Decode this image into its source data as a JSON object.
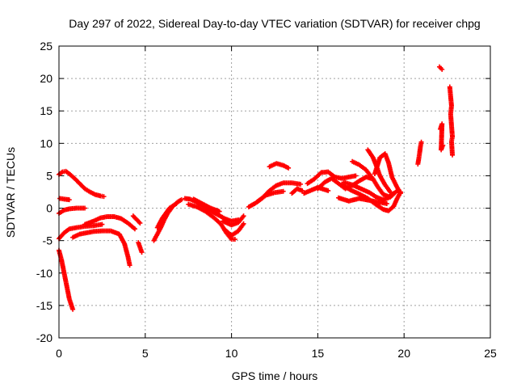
{
  "chart_data": {
    "type": "scatter",
    "title": "Day 297 of 2022, Sidereal Day-to-day VTEC variation (SDTVAR) for receiver chpg",
    "xlabel": "GPS time / hours",
    "ylabel": "SDTVAR / TECUs",
    "xlim": [
      0,
      25
    ],
    "ylim": [
      -20,
      25
    ],
    "xticks": [
      0,
      5,
      10,
      15,
      20,
      25
    ],
    "yticks": [
      -20,
      -15,
      -10,
      -5,
      0,
      5,
      10,
      15,
      20,
      25
    ],
    "grid": true,
    "marker": "plus",
    "color": "#ff0000",
    "series": [
      {
        "name": "arc-a1",
        "points": [
          [
            0.0,
            5.2
          ],
          [
            0.2,
            5.6
          ],
          [
            0.4,
            5.7
          ],
          [
            0.6,
            5.3
          ],
          [
            0.9,
            4.6
          ],
          [
            1.2,
            3.8
          ],
          [
            1.5,
            3.0
          ],
          [
            1.8,
            2.5
          ],
          [
            2.1,
            2.1
          ],
          [
            2.4,
            1.9
          ],
          [
            2.6,
            1.8
          ]
        ]
      },
      {
        "name": "arc-a2",
        "points": [
          [
            0.05,
            1.5
          ],
          [
            0.3,
            1.4
          ],
          [
            0.6,
            1.3
          ]
        ]
      },
      {
        "name": "arc-a3",
        "points": [
          [
            0.0,
            -0.8
          ],
          [
            0.3,
            -0.3
          ],
          [
            0.6,
            -0.1
          ],
          [
            1.0,
            0.0
          ],
          [
            1.5,
            0.0
          ]
        ]
      },
      {
        "name": "arc-a4",
        "points": [
          [
            0.0,
            -4.7
          ],
          [
            0.3,
            -3.8
          ],
          [
            0.6,
            -3.2
          ],
          [
            1.0,
            -3.0
          ],
          [
            1.5,
            -2.8
          ],
          [
            2.0,
            -2.7
          ],
          [
            2.5,
            -2.5
          ]
        ]
      },
      {
        "name": "arc-a5",
        "points": [
          [
            0.0,
            -6.5
          ],
          [
            0.15,
            -8.0
          ],
          [
            0.3,
            -10.0
          ],
          [
            0.45,
            -12.0
          ],
          [
            0.6,
            -14.0
          ],
          [
            0.8,
            -15.6
          ]
        ]
      },
      {
        "name": "arc-b1",
        "points": [
          [
            0.8,
            -4.5
          ],
          [
            1.2,
            -4.0
          ],
          [
            1.6,
            -3.8
          ],
          [
            2.0,
            -3.6
          ],
          [
            2.5,
            -3.5
          ],
          [
            3.0,
            -3.5
          ],
          [
            3.5,
            -4.0
          ],
          [
            3.8,
            -5.5
          ],
          [
            4.0,
            -7.5
          ],
          [
            4.1,
            -8.8
          ]
        ]
      },
      {
        "name": "arc-b2",
        "points": [
          [
            1.5,
            -2.5
          ],
          [
            2.0,
            -2.0
          ],
          [
            2.4,
            -1.5
          ],
          [
            2.8,
            -1.3
          ],
          [
            3.2,
            -1.3
          ],
          [
            3.6,
            -1.6
          ],
          [
            4.0,
            -2.3
          ],
          [
            4.4,
            -3.2
          ]
        ]
      },
      {
        "name": "arc-b3",
        "points": [
          [
            4.3,
            -1.2
          ],
          [
            4.7,
            -2.3
          ]
        ]
      },
      {
        "name": "arc-b4",
        "points": [
          [
            4.6,
            -5.3
          ],
          [
            4.8,
            -6.8
          ]
        ]
      },
      {
        "name": "arc-c1",
        "points": [
          [
            5.5,
            -5.0
          ],
          [
            5.7,
            -4.0
          ],
          [
            5.9,
            -3.0
          ],
          [
            6.1,
            -1.8
          ],
          [
            6.3,
            -0.8
          ],
          [
            6.6,
            0.3
          ],
          [
            6.9,
            1.0
          ],
          [
            7.1,
            1.3
          ]
        ]
      },
      {
        "name": "arc-c2",
        "points": [
          [
            5.7,
            -3.0
          ],
          [
            6.0,
            -1.5
          ],
          [
            6.4,
            0.0
          ],
          [
            6.8,
            0.7
          ]
        ]
      },
      {
        "name": "arc-d1",
        "points": [
          [
            7.3,
            1.5
          ],
          [
            7.6,
            1.4
          ],
          [
            8.0,
            0.9
          ],
          [
            8.4,
            0.3
          ],
          [
            8.8,
            -0.4
          ],
          [
            9.2,
            -1.0
          ],
          [
            9.6,
            -1.6
          ],
          [
            10.0,
            -2.0
          ],
          [
            10.4,
            -1.8
          ]
        ]
      },
      {
        "name": "arc-d2",
        "points": [
          [
            7.5,
            0.6
          ],
          [
            8.0,
            0.2
          ],
          [
            8.5,
            -0.5
          ],
          [
            9.0,
            -1.5
          ],
          [
            9.4,
            -2.5
          ],
          [
            9.7,
            -3.8
          ],
          [
            10.0,
            -4.8
          ],
          [
            10.2,
            -4.8
          ]
        ]
      },
      {
        "name": "arc-d3",
        "points": [
          [
            7.8,
            1.4
          ],
          [
            8.3,
            0.7
          ],
          [
            8.8,
            0.0
          ],
          [
            9.3,
            -0.5
          ]
        ]
      },
      {
        "name": "arc-d4",
        "points": [
          [
            9.5,
            -2.0
          ],
          [
            10.0,
            -2.6
          ],
          [
            10.4,
            -2.2
          ],
          [
            10.7,
            -1.2
          ]
        ]
      },
      {
        "name": "arc-d5",
        "points": [
          [
            9.6,
            -3.3
          ],
          [
            10.0,
            -4.2
          ],
          [
            10.4,
            -3.5
          ],
          [
            10.7,
            -2.4
          ]
        ]
      },
      {
        "name": "arc-e1",
        "points": [
          [
            11.0,
            0.2
          ],
          [
            11.4,
            0.8
          ],
          [
            11.8,
            1.6
          ],
          [
            12.2,
            2.7
          ],
          [
            12.6,
            3.5
          ],
          [
            13.0,
            3.9
          ],
          [
            13.5,
            3.9
          ],
          [
            14.0,
            3.7
          ]
        ]
      },
      {
        "name": "arc-e2",
        "points": [
          [
            11.5,
            1.0
          ],
          [
            12.0,
            2.0
          ],
          [
            12.5,
            2.4
          ],
          [
            13.0,
            2.6
          ]
        ]
      },
      {
        "name": "arc-e3",
        "points": [
          [
            12.2,
            6.4
          ],
          [
            12.6,
            6.9
          ],
          [
            13.0,
            6.6
          ],
          [
            13.3,
            6.2
          ]
        ]
      },
      {
        "name": "arc-e4",
        "points": [
          [
            13.5,
            2.3
          ],
          [
            13.8,
            3.0
          ],
          [
            14.1,
            2.7
          ]
        ]
      },
      {
        "name": "arc-f1",
        "points": [
          [
            14.4,
            3.8
          ],
          [
            14.8,
            4.5
          ],
          [
            15.2,
            5.5
          ],
          [
            15.6,
            5.6
          ],
          [
            16.0,
            4.8
          ],
          [
            16.4,
            4.6
          ],
          [
            16.8,
            4.8
          ],
          [
            17.2,
            5.0
          ]
        ]
      },
      {
        "name": "arc-f2",
        "points": [
          [
            15.0,
            3.0
          ],
          [
            15.4,
            4.0
          ],
          [
            15.8,
            4.6
          ],
          [
            16.2,
            3.8
          ],
          [
            16.6,
            3.0
          ],
          [
            17.0,
            3.5
          ],
          [
            17.4,
            4.2
          ],
          [
            17.8,
            4.8
          ],
          [
            18.2,
            4.5
          ]
        ]
      },
      {
        "name": "arc-f3",
        "points": [
          [
            14.2,
            2.3
          ],
          [
            15.0,
            3.2
          ],
          [
            15.6,
            2.7
          ]
        ]
      },
      {
        "name": "arc-g1",
        "points": [
          [
            16.4,
            3.6
          ],
          [
            16.9,
            2.8
          ],
          [
            17.4,
            2.2
          ],
          [
            17.9,
            1.5
          ],
          [
            18.4,
            0.5
          ],
          [
            18.8,
            -0.2
          ],
          [
            19.1,
            -0.4
          ],
          [
            19.4,
            0.3
          ],
          [
            19.6,
            1.5
          ],
          [
            19.8,
            2.5
          ]
        ]
      },
      {
        "name": "arc-g2",
        "points": [
          [
            17.0,
            7.2
          ],
          [
            17.4,
            6.7
          ],
          [
            17.8,
            5.9
          ],
          [
            18.2,
            4.5
          ],
          [
            18.5,
            3.2
          ],
          [
            18.8,
            2.1
          ],
          [
            19.1,
            1.8
          ],
          [
            19.4,
            2.3
          ]
        ]
      },
      {
        "name": "arc-g3",
        "points": [
          [
            17.9,
            9.0
          ],
          [
            18.2,
            7.8
          ],
          [
            18.4,
            6.5
          ],
          [
            18.6,
            5.0
          ],
          [
            18.9,
            3.6
          ],
          [
            19.2,
            2.5
          ]
        ]
      },
      {
        "name": "arc-g4",
        "points": [
          [
            18.3,
            5.3
          ],
          [
            18.6,
            7.8
          ],
          [
            18.9,
            8.4
          ],
          [
            19.1,
            7.0
          ],
          [
            19.3,
            4.8
          ],
          [
            19.6,
            3.2
          ],
          [
            19.8,
            2.3
          ]
        ]
      },
      {
        "name": "arc-g5",
        "points": [
          [
            16.5,
            4.0
          ],
          [
            17.0,
            3.6
          ],
          [
            17.5,
            3.0
          ],
          [
            18.0,
            2.4
          ],
          [
            18.4,
            1.7
          ],
          [
            18.8,
            1.3
          ],
          [
            19.2,
            1.7
          ],
          [
            19.6,
            2.7
          ]
        ]
      },
      {
        "name": "arc-g6",
        "points": [
          [
            16.2,
            1.6
          ],
          [
            16.8,
            1.1
          ],
          [
            17.4,
            1.5
          ],
          [
            18.0,
            1.2
          ],
          [
            18.6,
            0.9
          ],
          [
            19.0,
            0.7
          ]
        ]
      },
      {
        "name": "arc-h1",
        "points": [
          [
            20.8,
            6.8
          ],
          [
            20.85,
            7.6
          ],
          [
            20.9,
            8.5
          ],
          [
            20.95,
            9.5
          ],
          [
            21.0,
            10.2
          ]
        ]
      },
      {
        "name": "arc-h2",
        "points": [
          [
            22.05,
            21.8
          ],
          [
            22.2,
            21.4
          ]
        ]
      },
      {
        "name": "arc-h3",
        "points": [
          [
            22.1,
            12.2
          ],
          [
            22.2,
            13.0
          ],
          [
            22.15,
            9.0
          ],
          [
            22.25,
            9.7
          ]
        ]
      },
      {
        "name": "arc-h4",
        "points": [
          [
            22.65,
            18.7
          ],
          [
            22.7,
            17.2
          ],
          [
            22.75,
            15.8
          ],
          [
            22.7,
            14.5
          ],
          [
            22.8,
            11.0
          ],
          [
            22.75,
            10.3
          ],
          [
            22.8,
            8.2
          ]
        ]
      }
    ]
  }
}
